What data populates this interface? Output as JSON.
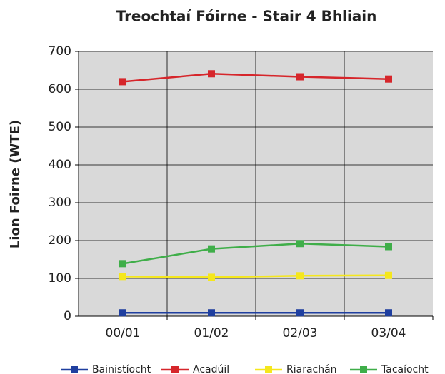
{
  "chart_data": {
    "type": "line",
    "title": "Treochtaí Fóirne - Stair 4 Bhliain",
    "y_label": "Lion Foirne (WTE)",
    "categories": [
      "00/01",
      "01/02",
      "02/03",
      "03/04"
    ],
    "series": [
      {
        "name": "Bainistíocht",
        "color": "#1f3f9f",
        "values": [
          9,
          9,
          9,
          9
        ]
      },
      {
        "name": "Acadúil",
        "color": "#d6262b",
        "values": [
          620,
          641,
          633,
          627
        ]
      },
      {
        "name": "Riarachán",
        "color": "#f5e71c",
        "values": [
          105,
          103,
          107,
          108
        ]
      },
      {
        "name": "Tacaíocht",
        "color": "#3fae49",
        "values": [
          139,
          178,
          192,
          184
        ]
      }
    ],
    "ylim": [
      0,
      700
    ],
    "yticks": [
      0,
      100,
      200,
      300,
      400,
      500,
      600,
      700
    ],
    "grid": true,
    "legend": "bottom"
  }
}
